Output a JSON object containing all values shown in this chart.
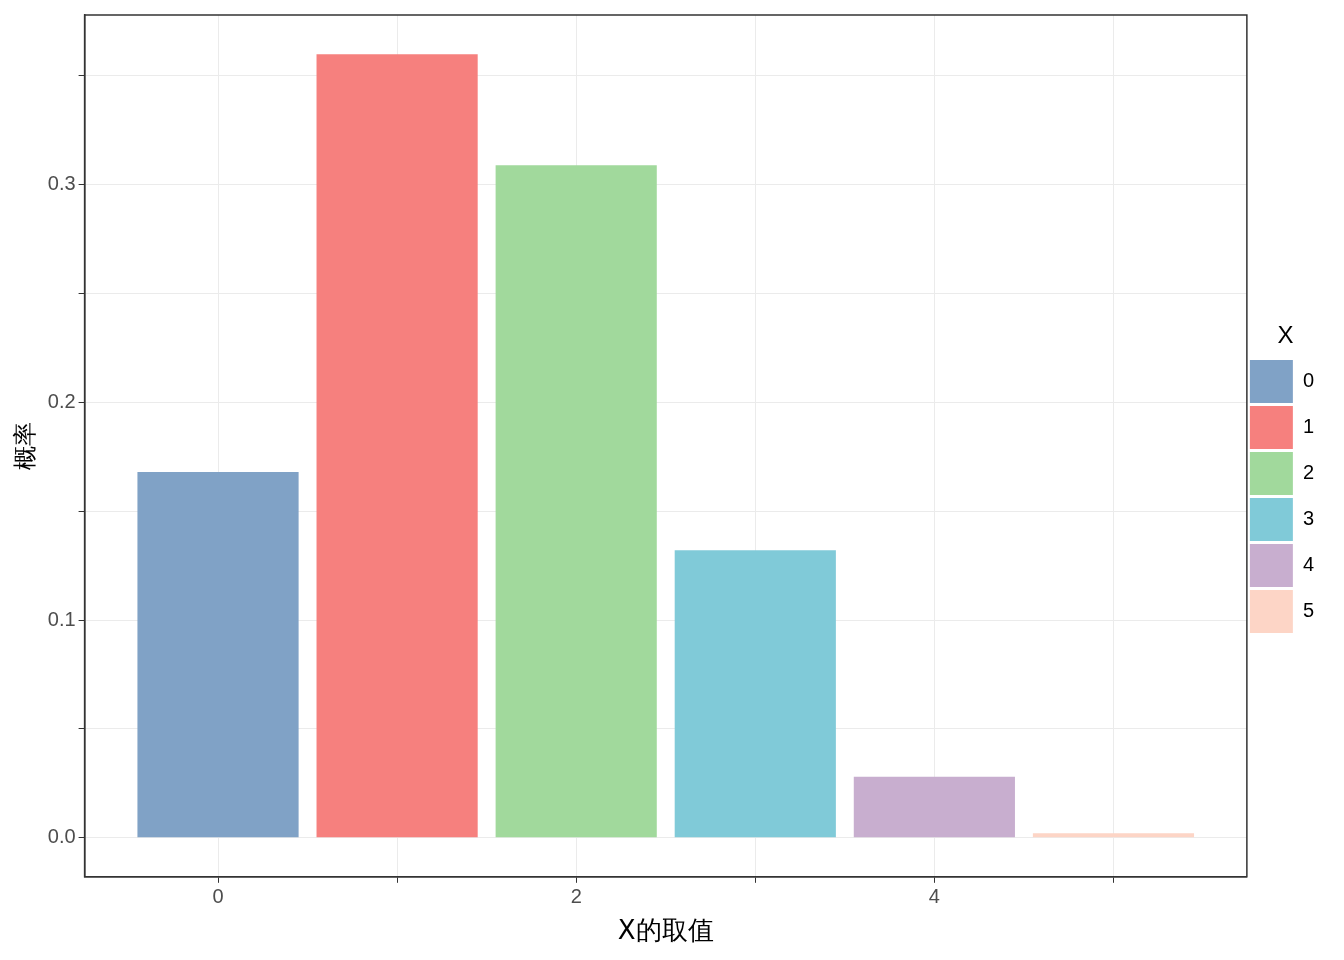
{
  "chart_data": {
    "type": "bar",
    "xlabel": "X的取值",
    "ylabel": "概率",
    "legend_title": "X",
    "legend": "right",
    "grid": true,
    "x": [
      0,
      1,
      2,
      3,
      4,
      5
    ],
    "series": [
      {
        "name": "0",
        "color": "#80a2c6",
        "values": [
          0.168,
          null,
          null,
          null,
          null,
          null
        ]
      },
      {
        "name": "1",
        "color": "#f6807e",
        "values": [
          null,
          0.36,
          null,
          null,
          null,
          null
        ]
      },
      {
        "name": "2",
        "color": "#a1d99c",
        "values": [
          null,
          null,
          0.309,
          null,
          null,
          null
        ]
      },
      {
        "name": "3",
        "color": "#80cad8",
        "values": [
          null,
          null,
          null,
          0.132,
          null,
          null
        ]
      },
      {
        "name": "4",
        "color": "#c8aecf",
        "values": [
          null,
          null,
          null,
          null,
          0.028,
          null
        ]
      },
      {
        "name": "5",
        "color": "#fdd5c6",
        "values": [
          null,
          null,
          null,
          null,
          null,
          0.002
        ]
      }
    ],
    "xlim": [
      -0.745,
      5.745
    ],
    "xticks": [
      0,
      {
        "value": 1,
        "label": null
      },
      2,
      {
        "value": 3,
        "label": null
      },
      4,
      {
        "value": 5,
        "label": null
      }
    ],
    "ylim": [
      -0.018,
      0.378
    ],
    "yticks": [
      {
        "value": 0,
        "label": "0.0"
      },
      {
        "value": 0.05,
        "label": null
      },
      0.1,
      {
        "value": 0.15,
        "label": null
      },
      0.2,
      {
        "value": 0.25,
        "label": null
      },
      0.3,
      {
        "value": 0.35,
        "label": null
      }
    ]
  }
}
